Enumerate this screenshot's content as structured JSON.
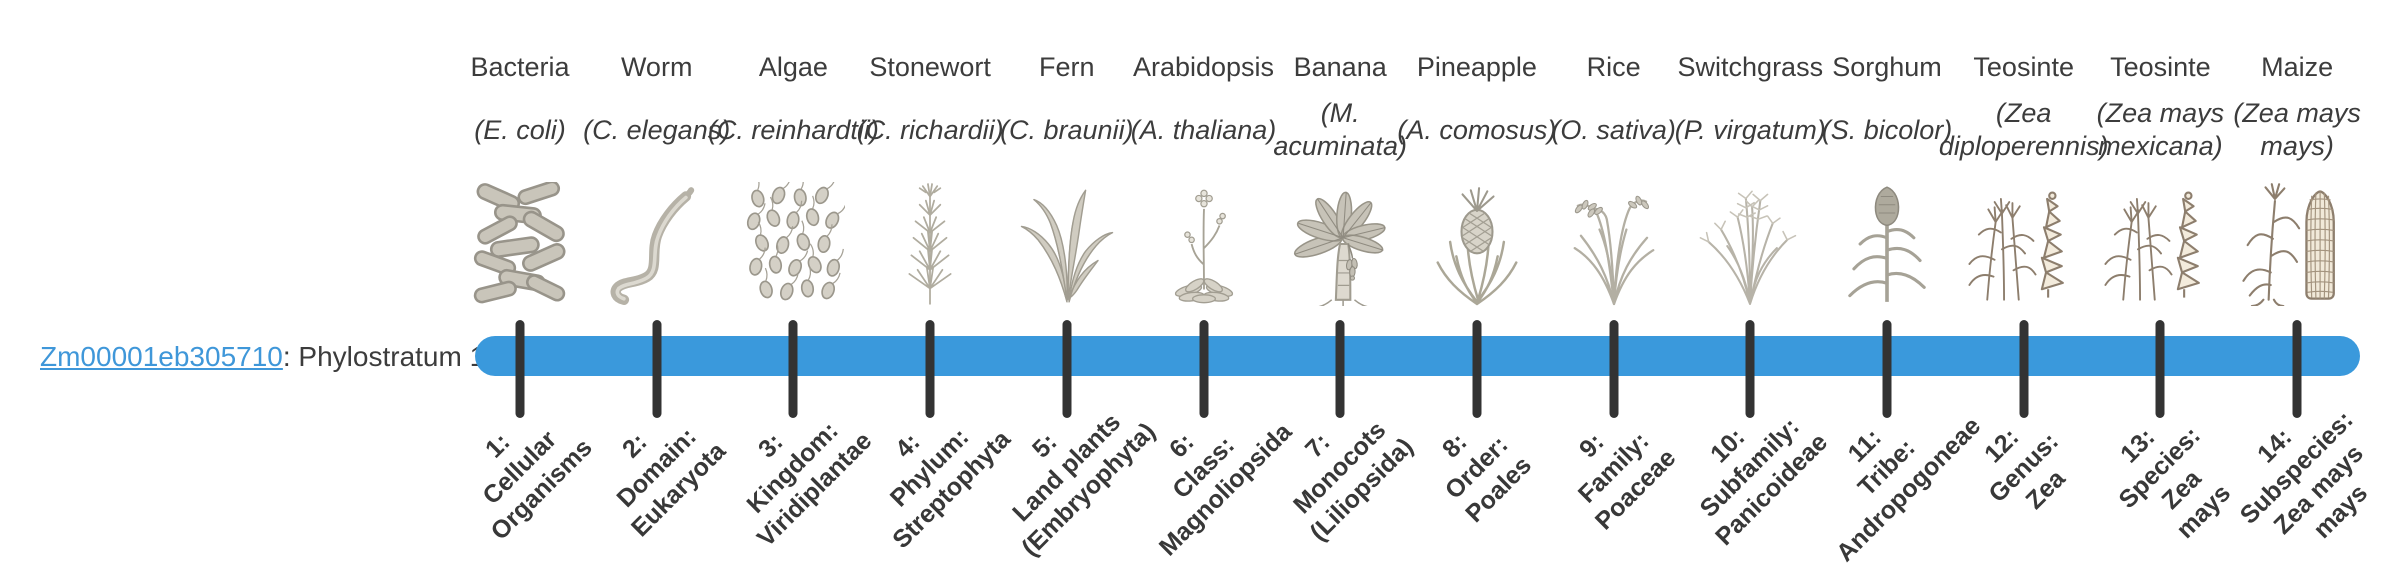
{
  "gene": {
    "id": "Zm00001eb305710",
    "suffix": ": Phylostratum 1"
  },
  "colors": {
    "bar_blue": "#3a99dc",
    "tick_dark": "#333333",
    "link_blue": "#3f97d9",
    "text_dark": "#3c3c3c"
  },
  "timeline": {
    "phylostratum_count": 14,
    "items": [
      {
        "name": "Bacteria",
        "species": "(E. coli)",
        "icon": "bacteria-icon",
        "tick_label_lines": [
          "1:",
          "Cellular",
          "Organisms"
        ]
      },
      {
        "name": "Worm",
        "species": "(C. elegans)",
        "icon": "worm-icon",
        "tick_label_lines": [
          "2:",
          "Domain:",
          "Eukaryota"
        ]
      },
      {
        "name": "Algae",
        "species": "(C. reinhardtii)",
        "icon": "algae-icon",
        "tick_label_lines": [
          "3:",
          "Kingdom:",
          "Viridiplantae"
        ]
      },
      {
        "name": "Stonewort",
        "species": "(C. richardii)",
        "icon": "stonewort-icon",
        "tick_label_lines": [
          "4:",
          "Phylum:",
          "Streptophyta"
        ]
      },
      {
        "name": "Fern",
        "species": "(C. braunii)",
        "icon": "fern-icon",
        "tick_label_lines": [
          "5:",
          "Land plants",
          "(Embryophyta)"
        ]
      },
      {
        "name": "Arabidopsis",
        "species": "(A. thaliana)",
        "icon": "arabidopsis-icon",
        "tick_label_lines": [
          "6:",
          "Class:",
          "Magnoliopsida"
        ]
      },
      {
        "name": "Banana",
        "species": "(M. acuminata)",
        "icon": "banana-icon",
        "tick_label_lines": [
          "7:",
          "Monocots",
          "(Liliopsida)"
        ]
      },
      {
        "name": "Pineapple",
        "species": "(A. comosus)",
        "icon": "pineapple-icon",
        "tick_label_lines": [
          "8:",
          "Order:",
          "Poales"
        ]
      },
      {
        "name": "Rice",
        "species": "(O. sativa)",
        "icon": "rice-icon",
        "tick_label_lines": [
          "9:",
          "Family:",
          "Poaceae"
        ]
      },
      {
        "name": "Switchgrass",
        "species": "(P. virgatum)",
        "icon": "switchgrass-icon",
        "tick_label_lines": [
          "10:",
          "Subfamily:",
          "Panicoideae"
        ]
      },
      {
        "name": "Sorghum",
        "species": "(S. bicolor)",
        "icon": "sorghum-icon",
        "tick_label_lines": [
          "11:",
          "Tribe:",
          "Andropogoneae"
        ]
      },
      {
        "name": "Teosinte",
        "species": "(Zea diploperennis)",
        "icon": "teosinte-icon",
        "tick_label_lines": [
          "12:",
          "Genus:",
          "Zea"
        ]
      },
      {
        "name": "Teosinte",
        "species": "(Zea mays mexicana)",
        "icon": "teosinte-icon",
        "tick_label_lines": [
          "13:",
          "Species:",
          "Zea",
          "mays"
        ]
      },
      {
        "name": "Maize",
        "species": "(Zea mays mays)",
        "icon": "maize-icon",
        "tick_label_lines": [
          "14:",
          "Subspecies:",
          "Zea mays",
          "mays"
        ]
      }
    ]
  }
}
